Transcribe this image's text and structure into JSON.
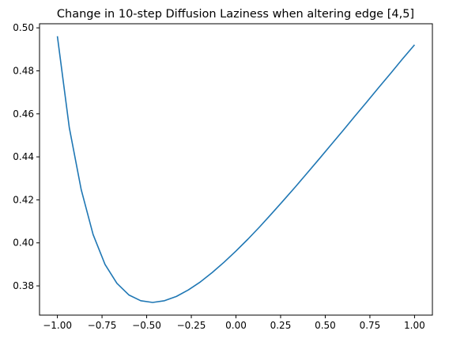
{
  "chart_data": {
    "type": "line",
    "title": "Change in 10-step Diffusion Laziness when altering edge [4,5]",
    "xlabel": "",
    "ylabel": "",
    "xlim": [
      -1.1,
      1.1
    ],
    "ylim": [
      0.3664,
      0.5019
    ],
    "grid": false,
    "legend": "none",
    "line_color": "#1f77b4",
    "x_ticks": [
      -1.0,
      -0.75,
      -0.5,
      -0.25,
      0.0,
      0.25,
      0.5,
      0.75,
      1.0
    ],
    "x_tick_labels": [
      "−1.00",
      "−0.75",
      "−0.50",
      "−0.25",
      "0.00",
      "0.25",
      "0.50",
      "0.75",
      "1.00"
    ],
    "y_ticks": [
      0.38,
      0.4,
      0.42,
      0.44,
      0.46,
      0.48,
      0.5
    ],
    "y_tick_labels": [
      "0.38",
      "0.40",
      "0.42",
      "0.44",
      "0.46",
      "0.48",
      "0.50"
    ],
    "series": [
      {
        "x": [
          -1.0,
          -0.9333,
          -0.8667,
          -0.8,
          -0.7333,
          -0.6667,
          -0.6,
          -0.5333,
          -0.4667,
          -0.4,
          -0.3333,
          -0.2667,
          -0.2,
          -0.1333,
          -0.0667,
          0.0,
          0.0667,
          0.1333,
          0.2,
          0.2667,
          0.3333,
          0.4,
          0.4667,
          0.5333,
          0.6,
          0.6667,
          0.7333,
          0.8,
          0.8667,
          0.9333,
          1.0
        ],
        "y": [
          0.4961,
          0.4536,
          0.4248,
          0.4039,
          0.39,
          0.3812,
          0.3758,
          0.3731,
          0.3723,
          0.3731,
          0.3751,
          0.3781,
          0.3818,
          0.3862,
          0.391,
          0.3962,
          0.4017,
          0.4075,
          0.4136,
          0.4198,
          0.4261,
          0.4326,
          0.4391,
          0.4457,
          0.4523,
          0.459,
          0.4656,
          0.4723,
          0.4789,
          0.4856,
          0.4921
        ]
      }
    ]
  }
}
